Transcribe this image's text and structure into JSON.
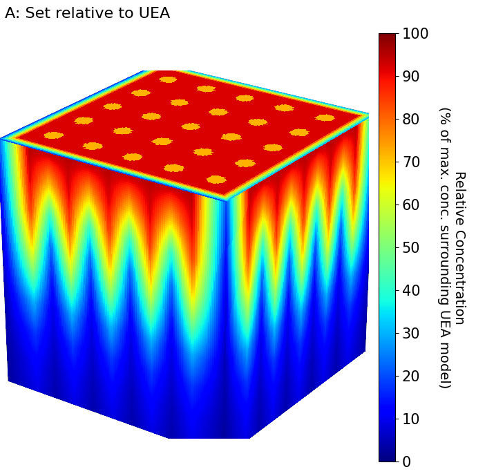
{
  "chart_data": {
    "type": "heatmap3d",
    "title": "A: Set relative to UEA",
    "colorbar_label": [
      "Relative Concentration",
      "(% of max. conc. surrounding UEA model)"
    ],
    "clim": [
      0,
      100
    ],
    "cticks": [
      0,
      10,
      20,
      30,
      40,
      50,
      60,
      70,
      80,
      90,
      100
    ],
    "top": {
      "surface": 92,
      "electrode": 72,
      "rim": 20
    },
    "side_cells": [
      [
        20,
        95,
        95,
        95,
        95,
        95,
        95,
        95,
        95,
        95,
        20
      ],
      [
        16,
        92,
        70,
        92,
        70,
        92,
        70,
        92,
        70,
        92,
        16
      ],
      [
        12,
        85,
        40,
        85,
        40,
        85,
        40,
        85,
        40,
        85,
        12
      ],
      [
        9,
        70,
        22,
        70,
        22,
        70,
        22,
        70,
        22,
        70,
        9
      ],
      [
        7,
        50,
        14,
        50,
        14,
        50,
        14,
        50,
        14,
        50,
        7
      ],
      [
        5,
        30,
        9,
        30,
        9,
        30,
        9,
        30,
        9,
        30,
        5
      ],
      [
        4,
        18,
        7,
        18,
        7,
        18,
        7,
        18,
        7,
        18,
        4
      ],
      [
        3,
        12,
        5,
        12,
        5,
        12,
        5,
        12,
        5,
        12,
        3
      ],
      [
        3,
        9,
        4,
        9,
        4,
        9,
        4,
        9,
        4,
        9,
        3
      ]
    ]
  }
}
